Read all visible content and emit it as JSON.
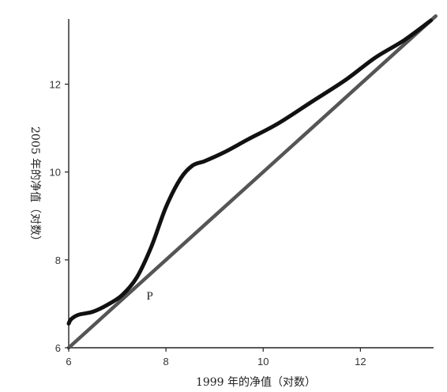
{
  "chart_data": {
    "type": "line",
    "title": "",
    "xlabel": "1999 年的净值（对数）",
    "ylabel": "2005 年的净值（对数）",
    "xlim": [
      6,
      13.7
    ],
    "ylim": [
      6,
      13.7
    ],
    "xticks": [
      6,
      8,
      10,
      12
    ],
    "yticks": [
      6,
      8,
      10,
      12
    ],
    "grid": false,
    "legend": "none",
    "series": [
      {
        "color": "#111111",
        "x": [
          6.0,
          6.05,
          6.2,
          6.5,
          6.8,
          7.1,
          7.4,
          7.7,
          8.0,
          8.3,
          8.55,
          8.8,
          9.2,
          9.7,
          10.3,
          11.0,
          11.7,
          12.3,
          12.9,
          13.45
        ],
        "y": [
          6.55,
          6.65,
          6.75,
          6.82,
          6.98,
          7.2,
          7.6,
          8.3,
          9.2,
          9.85,
          10.15,
          10.25,
          10.45,
          10.75,
          11.1,
          11.6,
          12.1,
          12.6,
          13.0,
          13.45
        ]
      },
      {
        "color": "#555555",
        "x": [
          6.0,
          13.55
        ],
        "y": [
          6.0,
          13.55
        ]
      }
    ],
    "annotations": [
      {
        "text": "P",
        "x": 7.6,
        "y": 7.1
      }
    ]
  }
}
